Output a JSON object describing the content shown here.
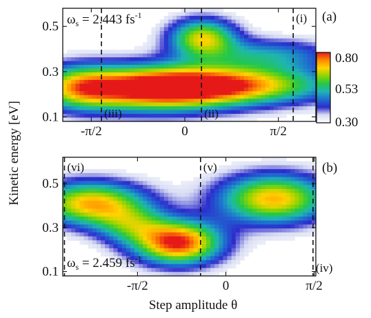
{
  "chart_data": {
    "type": "heatmap",
    "ylabel": "Kinetic energy [eV]",
    "xlabel": "Step amplitude θ",
    "colorbar": {
      "ticks": [
        "0.80",
        "0.53",
        "0.30"
      ],
      "range": [
        0.3,
        0.8
      ],
      "colors": [
        "#ffffff",
        "#d9ddf3",
        "#2c2ccc",
        "#1f6fd0",
        "#1fb4b4",
        "#22c84a",
        "#8fd400",
        "#ffd400",
        "#ff8a00",
        "#e61919"
      ]
    },
    "panels": [
      {
        "id": "a",
        "label": "(a)",
        "omega_label": "ωs = 2.443 fs",
        "omega_sub": "s",
        "omega_value": "2.443",
        "omega_unit": "fs",
        "omega_exp": "-1",
        "xlim": [
          -2.05,
          2.2
        ],
        "ylim": [
          0.08,
          0.58
        ],
        "xticks": [
          {
            "v": -1.5708,
            "label": "-π/2"
          },
          {
            "v": 0,
            "label": "0"
          },
          {
            "v": 1.5708,
            "label": "π/2"
          }
        ],
        "yticks": [
          {
            "v": 0.1,
            "label": "0.1"
          },
          {
            "v": 0.3,
            "label": "0.3"
          },
          {
            "v": 0.5,
            "label": "0.5"
          }
        ],
        "markers": [
          {
            "x": -1.4,
            "label": "(iii)",
            "pos": "bottom"
          },
          {
            "x": 0.28,
            "label": "(ii)",
            "pos": "bottom"
          },
          {
            "x": 1.82,
            "label": "(i)",
            "pos": "top"
          }
        ],
        "features": [
          {
            "x": -0.5,
            "y": 0.225,
            "sx": 0.95,
            "sy": 0.07,
            "amp": 1.0
          },
          {
            "x": 1.0,
            "y": 0.24,
            "sx": 1.1,
            "sy": 0.06,
            "amp": 0.72
          },
          {
            "x": -1.8,
            "y": 0.23,
            "sx": 0.5,
            "sy": 0.07,
            "amp": 0.55
          },
          {
            "x": 0.3,
            "y": 0.45,
            "sx": 0.4,
            "sy": 0.06,
            "amp": 0.72
          },
          {
            "x": 1.4,
            "y": 0.375,
            "sx": 0.8,
            "sy": 0.05,
            "amp": 0.38
          }
        ]
      },
      {
        "id": "b",
        "label": "(b)",
        "omega_label": "ωs = 2.459 fs",
        "omega_sub": "s",
        "omega_value": "2.459",
        "omega_unit": "fs",
        "omega_exp": "-1",
        "xlim": [
          -2.9,
          1.6
        ],
        "ylim": [
          0.08,
          0.62
        ],
        "xticks": [
          {
            "v": -1.5708,
            "label": "-π/2"
          },
          {
            "v": 0,
            "label": "0"
          },
          {
            "v": 1.5708,
            "label": "π/2"
          }
        ],
        "yticks": [
          {
            "v": 0.1,
            "label": "0.1"
          },
          {
            "v": 0.3,
            "label": "0.3"
          },
          {
            "v": 0.5,
            "label": "0.5"
          }
        ],
        "markers": [
          {
            "x": -2.87,
            "label": "(vi)",
            "pos": "top"
          },
          {
            "x": -0.45,
            "label": "(v)",
            "pos": "top"
          },
          {
            "x": 1.55,
            "label": "(iv)",
            "pos": "bottom"
          }
        ],
        "features": [
          {
            "x": -2.4,
            "y": 0.41,
            "sx": 0.7,
            "sy": 0.07,
            "amp": 0.82
          },
          {
            "x": -0.85,
            "y": 0.23,
            "sx": 0.55,
            "sy": 0.07,
            "amp": 1.0
          },
          {
            "x": 0.85,
            "y": 0.43,
            "sx": 0.7,
            "sy": 0.08,
            "amp": 0.82
          },
          {
            "x": -1.7,
            "y": 0.31,
            "sx": 0.45,
            "sy": 0.06,
            "amp": 0.4
          }
        ]
      }
    ]
  }
}
